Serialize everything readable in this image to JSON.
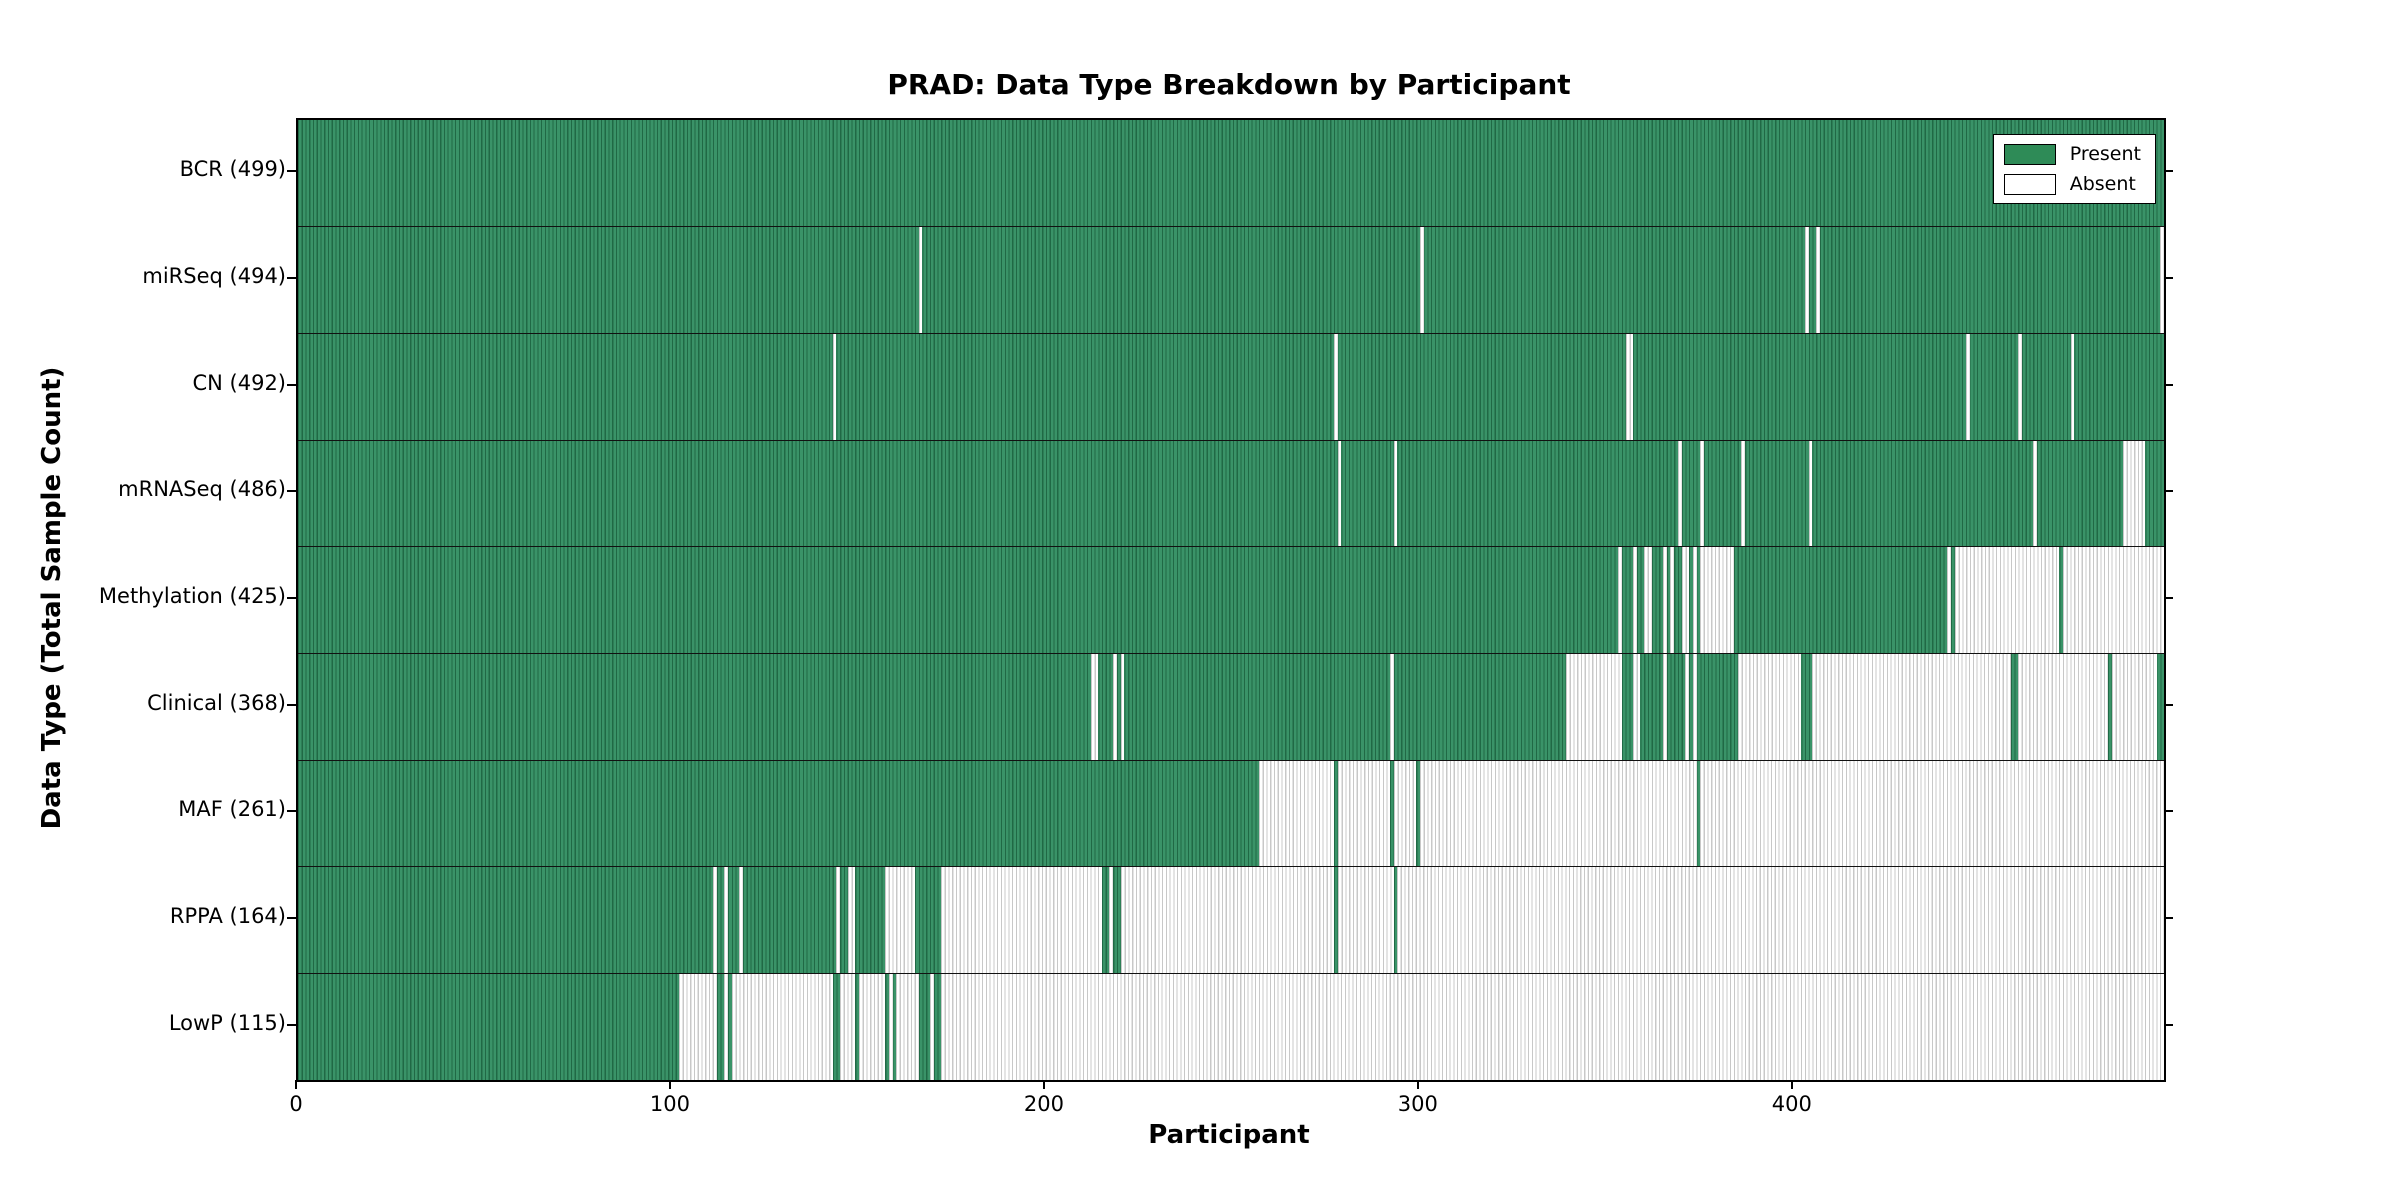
{
  "figure": {
    "title": "PRAD: Data Type Breakdown by Participant",
    "xlabel": "Participant",
    "ylabel": "Data Type (Total Sample Count)"
  },
  "legend": {
    "present_label": "Present",
    "absent_label": "Absent"
  },
  "colors": {
    "present_solid": "#2e8b57",
    "present_fill": "#3a9368",
    "present_edge": "#206945",
    "absent_fill": "#ffffff",
    "absent_edge": "#c8c8c8",
    "axis": "#000000"
  },
  "chart_data": {
    "type": "heatmap",
    "title": "PRAD: Data Type Breakdown by Participant",
    "xlabel": "Participant",
    "ylabel": "Data Type (Total Sample Count)",
    "x_ticks": [
      0,
      100,
      200,
      300,
      400
    ],
    "xlim": [
      0,
      499
    ],
    "n_participants": 499,
    "legend_entries": [
      "Present",
      "Absent"
    ],
    "legend_position": "upper right",
    "grid": false,
    "cell_values": "present=1 (green), absent=0 (white); absent_ranges are inclusive participant index ranges [start,end]",
    "rows": [
      {
        "label": "BCR",
        "present_count": 499,
        "absent_ranges": []
      },
      {
        "label": "miRSeq",
        "present_count": 494,
        "absent_ranges": [
          [
            166,
            166
          ],
          [
            300,
            300
          ],
          [
            403,
            403
          ],
          [
            406,
            406
          ],
          [
            498,
            498
          ]
        ]
      },
      {
        "label": "CN",
        "present_count": 492,
        "absent_ranges": [
          [
            143,
            143
          ],
          [
            277,
            277
          ],
          [
            355,
            356
          ],
          [
            446,
            446
          ],
          [
            460,
            460
          ],
          [
            474,
            474
          ]
        ]
      },
      {
        "label": "mRNASeq",
        "present_count": 486,
        "absent_ranges": [
          [
            278,
            278
          ],
          [
            293,
            293
          ],
          [
            369,
            369
          ],
          [
            375,
            375
          ],
          [
            386,
            386
          ],
          [
            404,
            404
          ],
          [
            464,
            464
          ],
          [
            488,
            493
          ]
        ]
      },
      {
        "label": "Methylation",
        "present_count": 425,
        "absent_ranges": [
          [
            353,
            353
          ],
          [
            357,
            357
          ],
          [
            360,
            361
          ],
          [
            365,
            365
          ],
          [
            367,
            367
          ],
          [
            370,
            371
          ],
          [
            373,
            373
          ],
          [
            375,
            383
          ],
          [
            441,
            441
          ],
          [
            443,
            470
          ],
          [
            472,
            498
          ]
        ]
      },
      {
        "label": "Clinical",
        "present_count": 368,
        "absent_ranges": [
          [
            212,
            213
          ],
          [
            218,
            218
          ],
          [
            220,
            220
          ],
          [
            292,
            292
          ],
          [
            339,
            353
          ],
          [
            357,
            358
          ],
          [
            365,
            365
          ],
          [
            371,
            371
          ],
          [
            373,
            373
          ],
          [
            385,
            401
          ],
          [
            405,
            457
          ],
          [
            460,
            483
          ],
          [
            485,
            496
          ]
        ]
      },
      {
        "label": "MAF",
        "present_count": 261,
        "absent_ranges": [
          [
            257,
            276
          ],
          [
            278,
            291
          ],
          [
            293,
            298
          ],
          [
            300,
            373
          ],
          [
            375,
            498
          ]
        ]
      },
      {
        "label": "RPPA",
        "present_count": 164,
        "absent_ranges": [
          [
            111,
            111
          ],
          [
            114,
            114
          ],
          [
            118,
            118
          ],
          [
            144,
            144
          ],
          [
            147,
            148
          ],
          [
            157,
            164
          ],
          [
            172,
            214
          ],
          [
            217,
            217
          ],
          [
            220,
            276
          ],
          [
            278,
            292
          ],
          [
            294,
            498
          ]
        ]
      },
      {
        "label": "LowP",
        "present_count": 115,
        "absent_ranges": [
          [
            102,
            111
          ],
          [
            114,
            114
          ],
          [
            116,
            142
          ],
          [
            145,
            148
          ],
          [
            150,
            156
          ],
          [
            158,
            158
          ],
          [
            160,
            165
          ],
          [
            169,
            169
          ],
          [
            172,
            498
          ]
        ]
      }
    ]
  }
}
